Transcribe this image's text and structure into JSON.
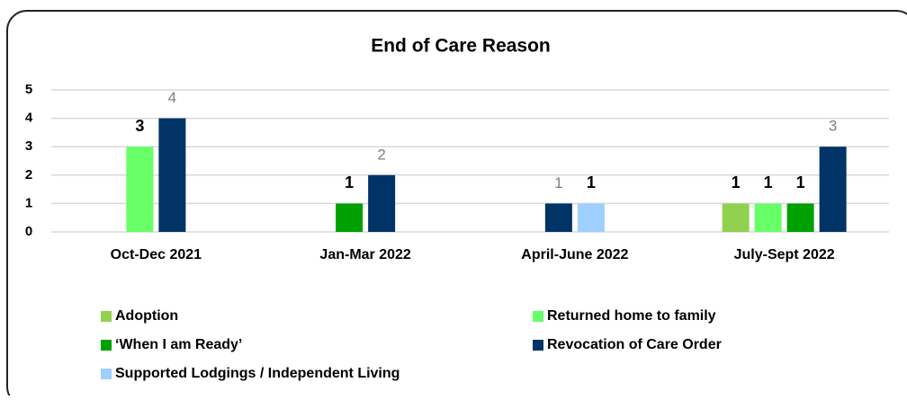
{
  "chart_data": {
    "type": "bar",
    "title": "End of Care Reason",
    "categories": [
      "Oct-Dec  2021",
      "Jan-Mar  2022",
      "April-June 2022",
      "July-Sept 2022"
    ],
    "series": [
      {
        "name": "Adoption",
        "color": "#92d050",
        "label_color": "#000000",
        "values": [
          null,
          null,
          null,
          1
        ]
      },
      {
        "name": "Returned home to family",
        "color": "#66ff66",
        "label_color": "#000000",
        "values": [
          3,
          null,
          null,
          1
        ]
      },
      {
        "name": "‘When I am Ready’",
        "color": "#00a000",
        "label_color": "#000000",
        "values": [
          null,
          1,
          null,
          1
        ]
      },
      {
        "name": "Revocation of Care Order",
        "color": "#003366",
        "label_color": "#7f7f7f",
        "values": [
          4,
          2,
          1,
          3
        ]
      },
      {
        "name": "Supported Lodgings / Independent Living",
        "color": "#9fcfff",
        "label_color": "#000000",
        "values": [
          null,
          null,
          1,
          null
        ]
      }
    ],
    "ylim": [
      0,
      5
    ],
    "yticks": [
      0,
      1,
      2,
      3,
      4,
      5
    ],
    "grid": true
  }
}
